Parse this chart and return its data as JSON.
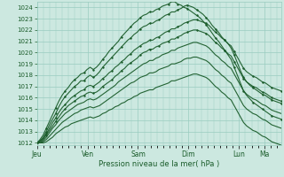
{
  "xlabel": "Pression niveau de la mer( hPa )",
  "bg_color": "#cce8e0",
  "grid_color": "#99ccc0",
  "line_color": "#1a5c2a",
  "yticks": [
    1012,
    1013,
    1014,
    1015,
    1016,
    1017,
    1018,
    1019,
    1020,
    1021,
    1022,
    1023,
    1024
  ],
  "ylim": [
    1011.8,
    1024.5
  ],
  "day_labels": [
    "Jeu",
    "Ven",
    "Sam",
    "Dim",
    "Lun",
    "Ma"
  ],
  "day_positions": [
    0,
    48,
    96,
    144,
    192,
    216
  ],
  "xlim": [
    0,
    232
  ],
  "series": [
    [
      1012.0,
      1012.15,
      1012.4,
      1012.8,
      1013.3,
      1013.8,
      1014.2,
      1014.7,
      1015.1,
      1015.4,
      1015.7,
      1016.0,
      1016.2,
      1016.4,
      1016.6,
      1016.7,
      1017.0,
      1017.1,
      1017.0,
      1017.2,
      1017.4,
      1017.7,
      1017.9,
      1018.2,
      1018.4,
      1018.7,
      1018.9,
      1019.2,
      1019.4,
      1019.7,
      1019.9,
      1020.2,
      1020.4,
      1020.6,
      1020.8,
      1020.9,
      1021.1,
      1021.1,
      1021.3,
      1021.4,
      1021.6,
      1021.8,
      1021.9,
      1022.1,
      1022.1,
      1022.3,
      1022.4,
      1022.6,
      1022.7,
      1022.8,
      1022.9,
      1022.9,
      1022.8,
      1022.7,
      1022.6,
      1022.4,
      1022.1,
      1021.8,
      1021.6,
      1021.3,
      1021.1,
      1020.8,
      1020.6,
      1020.1,
      1019.6,
      1019.1,
      1018.6,
      1018.3,
      1018.1,
      1017.9,
      1017.8,
      1017.6,
      1017.4,
      1017.3,
      1017.1,
      1016.9,
      1016.8,
      1016.7,
      1016.6
    ],
    [
      1012.0,
      1012.1,
      1012.3,
      1012.7,
      1013.1,
      1013.5,
      1013.9,
      1014.3,
      1014.7,
      1015.0,
      1015.3,
      1015.5,
      1015.7,
      1015.9,
      1016.1,
      1016.2,
      1016.4,
      1016.5,
      1016.4,
      1016.5,
      1016.7,
      1017.0,
      1017.2,
      1017.4,
      1017.6,
      1017.9,
      1018.1,
      1018.4,
      1018.6,
      1018.9,
      1019.1,
      1019.3,
      1019.5,
      1019.8,
      1020.0,
      1020.1,
      1020.3,
      1020.3,
      1020.5,
      1020.6,
      1020.8,
      1020.9,
      1021.0,
      1021.2,
      1021.2,
      1021.4,
      1021.5,
      1021.7,
      1021.8,
      1021.9,
      1022.0,
      1022.0,
      1021.9,
      1021.8,
      1021.7,
      1021.5,
      1021.2,
      1020.9,
      1020.7,
      1020.4,
      1020.2,
      1019.9,
      1019.7,
      1019.2,
      1018.7,
      1018.2,
      1017.7,
      1017.4,
      1017.2,
      1017.0,
      1016.9,
      1016.7,
      1016.5,
      1016.4,
      1016.2,
      1016.0,
      1015.9,
      1015.8,
      1015.7
    ],
    [
      1012.0,
      1012.0,
      1012.2,
      1012.5,
      1012.9,
      1013.3,
      1013.6,
      1014.0,
      1014.3,
      1014.6,
      1014.8,
      1015.0,
      1015.2,
      1015.4,
      1015.5,
      1015.6,
      1015.8,
      1015.9,
      1015.8,
      1015.9,
      1016.1,
      1016.3,
      1016.5,
      1016.7,
      1016.9,
      1017.1,
      1017.4,
      1017.6,
      1017.8,
      1018.0,
      1018.2,
      1018.4,
      1018.6,
      1018.8,
      1019.0,
      1019.1,
      1019.3,
      1019.3,
      1019.5,
      1019.6,
      1019.8,
      1019.9,
      1020.0,
      1020.2,
      1020.2,
      1020.4,
      1020.5,
      1020.6,
      1020.7,
      1020.8,
      1020.9,
      1020.9,
      1020.8,
      1020.7,
      1020.6,
      1020.4,
      1020.1,
      1019.8,
      1019.6,
      1019.3,
      1019.1,
      1018.8,
      1018.6,
      1018.1,
      1017.6,
      1017.1,
      1016.6,
      1016.3,
      1016.1,
      1015.9,
      1015.8,
      1015.6,
      1015.4,
      1015.3,
      1015.1,
      1014.9,
      1014.8,
      1014.7,
      1014.6
    ],
    [
      1012.0,
      1012.0,
      1012.1,
      1012.3,
      1012.6,
      1012.9,
      1013.2,
      1013.5,
      1013.8,
      1014.0,
      1014.2,
      1014.4,
      1014.6,
      1014.7,
      1014.9,
      1015.0,
      1015.1,
      1015.2,
      1015.1,
      1015.2,
      1015.3,
      1015.5,
      1015.7,
      1015.9,
      1016.1,
      1016.3,
      1016.5,
      1016.7,
      1016.9,
      1017.1,
      1017.3,
      1017.4,
      1017.6,
      1017.8,
      1017.9,
      1018.0,
      1018.2,
      1018.2,
      1018.3,
      1018.5,
      1018.6,
      1018.7,
      1018.8,
      1019.0,
      1019.0,
      1019.1,
      1019.2,
      1019.4,
      1019.5,
      1019.5,
      1019.6,
      1019.6,
      1019.5,
      1019.4,
      1019.3,
      1019.1,
      1018.8,
      1018.5,
      1018.3,
      1018.0,
      1017.8,
      1017.5,
      1017.3,
      1016.8,
      1016.3,
      1015.8,
      1015.3,
      1015.0,
      1014.8,
      1014.6,
      1014.5,
      1014.3,
      1014.1,
      1014.0,
      1013.8,
      1013.6,
      1013.5,
      1013.4,
      1013.3
    ],
    [
      1012.0,
      1012.0,
      1012.0,
      1012.1,
      1012.3,
      1012.5,
      1012.8,
      1013.0,
      1013.2,
      1013.4,
      1013.5,
      1013.7,
      1013.8,
      1013.9,
      1014.0,
      1014.1,
      1014.2,
      1014.3,
      1014.2,
      1014.3,
      1014.4,
      1014.6,
      1014.7,
      1014.9,
      1015.0,
      1015.2,
      1015.3,
      1015.5,
      1015.6,
      1015.8,
      1015.9,
      1016.1,
      1016.2,
      1016.4,
      1016.5,
      1016.6,
      1016.7,
      1016.7,
      1016.9,
      1017.0,
      1017.1,
      1017.2,
      1017.3,
      1017.5,
      1017.5,
      1017.6,
      1017.7,
      1017.8,
      1017.9,
      1018.0,
      1018.1,
      1018.1,
      1018.0,
      1017.9,
      1017.8,
      1017.6,
      1017.3,
      1017.0,
      1016.8,
      1016.5,
      1016.3,
      1016.0,
      1015.8,
      1015.3,
      1014.8,
      1014.3,
      1013.8,
      1013.5,
      1013.3,
      1013.1,
      1013.0,
      1012.8,
      1012.6,
      1012.5,
      1012.3,
      1012.1,
      1012.0,
      1011.9,
      1011.8
    ],
    [
      1012.0,
      1012.2,
      1012.5,
      1013.0,
      1013.6,
      1014.1,
      1014.6,
      1015.2,
      1015.7,
      1016.1,
      1016.4,
      1016.7,
      1017.0,
      1017.2,
      1017.5,
      1017.5,
      1017.8,
      1018.0,
      1017.8,
      1018.0,
      1018.3,
      1018.7,
      1019.0,
      1019.3,
      1019.6,
      1019.9,
      1020.2,
      1020.5,
      1020.8,
      1021.1,
      1021.3,
      1021.6,
      1021.8,
      1022.1,
      1022.3,
      1022.4,
      1022.6,
      1022.6,
      1022.8,
      1022.9,
      1023.1,
      1023.3,
      1023.4,
      1023.6,
      1023.6,
      1023.8,
      1023.9,
      1024.1,
      1024.2,
      1024.1,
      1024.0,
      1023.8,
      1023.6,
      1023.4,
      1023.1,
      1022.8,
      1022.4,
      1022.1,
      1021.8,
      1021.4,
      1021.1,
      1020.8,
      1020.4,
      1019.8,
      1019.1,
      1018.4,
      1017.8,
      1017.4,
      1017.1,
      1016.9,
      1016.7,
      1016.5,
      1016.3,
      1016.2,
      1016.0,
      1015.8,
      1015.7,
      1015.6,
      1015.5
    ],
    [
      1012.0,
      1012.3,
      1012.7,
      1013.3,
      1013.9,
      1014.5,
      1015.1,
      1015.7,
      1016.2,
      1016.6,
      1016.9,
      1017.3,
      1017.6,
      1017.8,
      1018.1,
      1018.2,
      1018.5,
      1018.7,
      1018.5,
      1018.7,
      1019.0,
      1019.4,
      1019.7,
      1020.1,
      1020.4,
      1020.7,
      1021.0,
      1021.4,
      1021.7,
      1022.0,
      1022.3,
      1022.6,
      1022.8,
      1023.1,
      1023.3,
      1023.4,
      1023.6,
      1023.6,
      1023.8,
      1023.9,
      1024.1,
      1024.2,
      1024.3,
      1024.5,
      1024.5,
      1024.3,
      1024.2,
      1024.0,
      1023.9,
      1023.7,
      1023.5,
      1023.3,
      1023.1,
      1022.8,
      1022.5,
      1022.1,
      1021.7,
      1021.3,
      1021.0,
      1020.6,
      1020.2,
      1019.8,
      1019.4,
      1018.7,
      1018.0,
      1017.3,
      1016.6,
      1016.2,
      1015.9,
      1015.6,
      1015.4,
      1015.2,
      1015.0,
      1014.8,
      1014.6,
      1014.4,
      1014.3,
      1014.2,
      1014.1
    ]
  ]
}
